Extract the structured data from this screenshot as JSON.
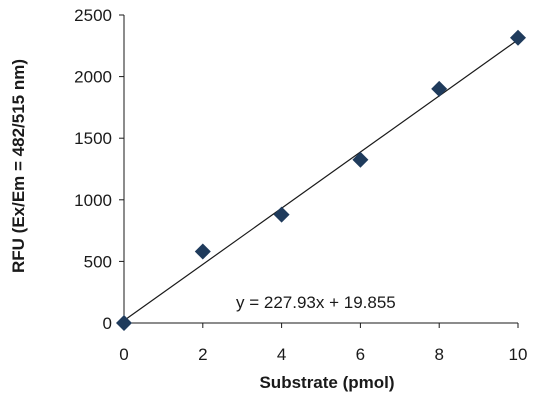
{
  "chart_data": {
    "type": "scatter",
    "xlabel": "Substrate  (pmol)",
    "ylabel": "RFU (Ex/Em = 482/515 nm)",
    "xlim": [
      0,
      10
    ],
    "ylim": [
      0,
      2500
    ],
    "x_ticks": [
      "0",
      "2",
      "4",
      "6",
      "8",
      "10"
    ],
    "y_ticks": [
      "0",
      "500",
      "1000",
      "1500",
      "2000",
      "2500"
    ],
    "grid": false,
    "marker": "diamond",
    "marker_color": "#1f3b5c",
    "series": [
      {
        "x": [
          0,
          2,
          4,
          6,
          8,
          10
        ],
        "y": [
          0,
          580,
          880,
          1325,
          1900,
          2315
        ]
      }
    ],
    "trendline": {
      "slope": 227.93,
      "intercept": 19.855,
      "color": "#1a1a1a"
    },
    "annotations": [
      "y = 227.93x  + 19.855"
    ]
  }
}
